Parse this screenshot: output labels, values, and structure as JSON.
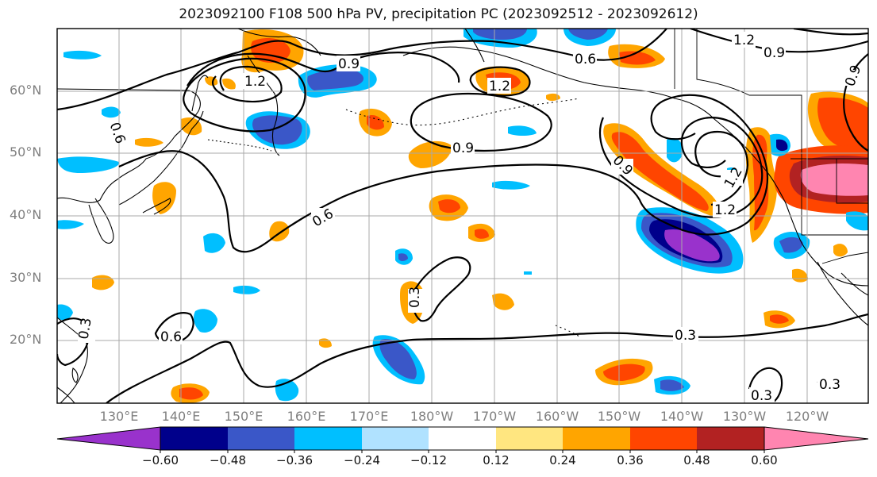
{
  "title": "2023092100 F108 500 hPa PV, precipitation PC (2023092512 - 2023092612)",
  "lat_labels": [
    "60°N",
    "50°N",
    "40°N",
    "30°N",
    "20°N"
  ],
  "lon_labels": [
    "130°E",
    "140°E",
    "150°E",
    "160°E",
    "170°E",
    "180°W",
    "170°W",
    "160°W",
    "150°W",
    "140°W",
    "130°W",
    "120°W"
  ],
  "contour_labels": [
    "1.2",
    "0.9",
    "0.6",
    "0.9",
    "1.2",
    "0.6",
    "0.9",
    "1.2",
    "0.9",
    "0.6",
    "1.2",
    "1.2",
    "0.9",
    "0.6",
    "0.6",
    "0.3",
    "0.3",
    "0.6",
    "0.3",
    "0.3",
    "0.3"
  ],
  "colorbar": {
    "ticks": [
      "−0.60",
      "−0.48",
      "−0.36",
      "−0.24",
      "−0.12",
      "0.12",
      "0.24",
      "0.36",
      "0.48",
      "0.60"
    ],
    "colors": [
      "#9932cc",
      "#00008b",
      "#3a57c8",
      "#00bfff",
      "#b0e2ff",
      "#ffffff",
      "#ffe680",
      "#ffa500",
      "#ff4500",
      "#b22222",
      "#ff85b0"
    ]
  },
  "chart_data": {
    "type": "heatmap",
    "title": "2023092100 F108 500 hPa PV, precipitation PC (2023092512 - 2023092612)",
    "fields": [
      "500 hPa PV (contours)",
      "precipitation PC (shaded)"
    ],
    "lat_range": [
      "10°N",
      "70°N"
    ],
    "lon_range": [
      "120°E",
      "110°W"
    ],
    "contour_levels": [
      0.3,
      0.6,
      0.9,
      1.2
    ],
    "shading_levels": [
      -0.6,
      -0.48,
      -0.36,
      -0.24,
      -0.12,
      0.12,
      0.24,
      0.36,
      0.48,
      0.6
    ],
    "grid": true
  }
}
